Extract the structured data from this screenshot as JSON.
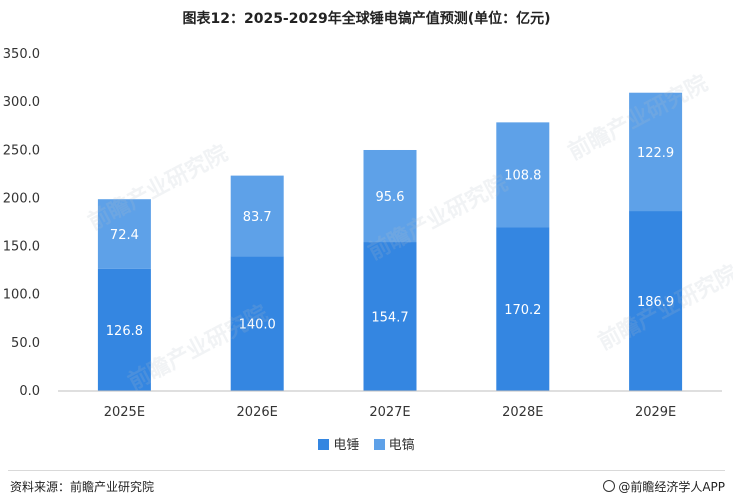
{
  "title": "图表12：2025-2029年全球锤电镐产值预测(单位：亿元)",
  "colors": {
    "series1": "#3486E1",
    "series2": "#5EA1E8",
    "axis": "#bfbfbf",
    "text": "#333333"
  },
  "chart_data": {
    "type": "bar",
    "stacked": true,
    "categories": [
      "2025E",
      "2026E",
      "2027E",
      "2028E",
      "2029E"
    ],
    "series": [
      {
        "name": "电锤",
        "values": [
          126.8,
          140.0,
          154.7,
          170.2,
          186.9
        ],
        "labels": [
          "126.8",
          "140.0",
          "154.7",
          "170.2",
          "186.9"
        ]
      },
      {
        "name": "电镐",
        "values": [
          72.4,
          83.7,
          95.6,
          108.8,
          122.9
        ],
        "labels": [
          "72.4",
          "83.7",
          "95.6",
          "108.8",
          "122.9"
        ]
      }
    ],
    "ylim": [
      0,
      350
    ],
    "yticks": [
      "0.0",
      "50.0",
      "100.0",
      "150.0",
      "200.0",
      "250.0",
      "300.0",
      "350.0"
    ],
    "ytick_values": [
      0,
      50,
      100,
      150,
      200,
      250,
      300,
      350
    ],
    "grid": false,
    "legend": "bottom"
  },
  "footer": {
    "source": "资料来源：前瞻产业研究院",
    "brand": "@前瞻经济学人APP"
  },
  "watermark": "前瞻产业研究院"
}
